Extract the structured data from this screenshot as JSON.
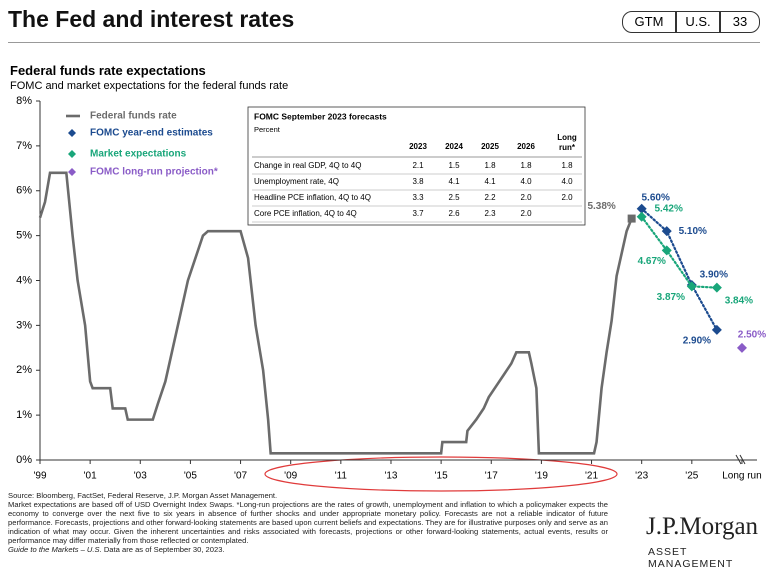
{
  "header": {
    "title": "The Fed and interest rates",
    "badges": [
      "GTM",
      "U.S.",
      "33"
    ]
  },
  "chart_data": {
    "type": "line",
    "title": "Federal funds rate expectations",
    "subtitle": "FOMC and market expectations for the federal funds rate",
    "xlim": [
      1999,
      2027.6
    ],
    "xticks": [
      {
        "value": 1999,
        "label": "'99"
      },
      {
        "value": 2001,
        "label": "'01"
      },
      {
        "value": 2003,
        "label": "'03"
      },
      {
        "value": 2005,
        "label": "'05"
      },
      {
        "value": 2007,
        "label": "'07"
      },
      {
        "value": 2009,
        "label": "'09"
      },
      {
        "value": 2011,
        "label": "'11"
      },
      {
        "value": 2013,
        "label": "'13"
      },
      {
        "value": 2015,
        "label": "'15"
      },
      {
        "value": 2017,
        "label": "'17"
      },
      {
        "value": 2019,
        "label": "'19"
      },
      {
        "value": 2021,
        "label": "'21"
      },
      {
        "value": 2023,
        "label": "'23"
      },
      {
        "value": 2025,
        "label": "'25"
      },
      {
        "value": 2027,
        "label": "Long run"
      }
    ],
    "ylim": [
      0,
      8
    ],
    "yticks": [
      {
        "value": 0,
        "label": "0%"
      },
      {
        "value": 1,
        "label": "1%"
      },
      {
        "value": 2,
        "label": "2%"
      },
      {
        "value": 3,
        "label": "3%"
      },
      {
        "value": 4,
        "label": "4%"
      },
      {
        "value": 5,
        "label": "5%"
      },
      {
        "value": 6,
        "label": "6%"
      },
      {
        "value": 7,
        "label": "7%"
      },
      {
        "value": 8,
        "label": "8%"
      }
    ],
    "grid": false,
    "series": [
      {
        "name": "Federal funds rate",
        "color": "#6b6b6b",
        "line_style": "solid",
        "marker": "end-square",
        "x": [
          1999.0,
          1999.2,
          1999.4,
          2000.05,
          2000.3,
          2000.5,
          2000.8,
          2001.0,
          2001.1,
          2001.8,
          2001.9,
          2002.4,
          2002.5,
          2003.5,
          2003.7,
          2004.0,
          2004.3,
          2004.6,
          2004.9,
          2005.2,
          2005.5,
          2005.7,
          2007.0,
          2007.3,
          2007.6,
          2007.9,
          2008.1,
          2008.2,
          2015.0,
          2015.05,
          2016.0,
          2016.05,
          2016.4,
          2016.7,
          2016.9,
          2017.2,
          2017.5,
          2017.8,
          2018.0,
          2018.5,
          2018.6,
          2018.8,
          2018.9,
          2021.1,
          2021.2,
          2021.4,
          2021.6,
          2021.8,
          2022.0,
          2022.2,
          2022.4,
          2022.6
        ],
        "values": [
          5.4,
          5.75,
          6.4,
          6.4,
          5.0,
          4.0,
          3.0,
          1.75,
          1.6,
          1.6,
          1.15,
          1.15,
          0.9,
          0.9,
          1.25,
          1.75,
          2.5,
          3.25,
          4.0,
          4.5,
          5.0,
          5.1,
          5.1,
          4.5,
          3.0,
          2.0,
          0.9,
          0.15,
          0.15,
          0.4,
          0.4,
          0.65,
          0.9,
          1.15,
          1.4,
          1.65,
          1.9,
          2.15,
          2.4,
          2.4,
          2.15,
          1.6,
          0.15,
          0.15,
          0.4,
          1.6,
          2.4,
          3.1,
          4.1,
          4.6,
          5.1,
          5.38
        ],
        "value_labels": [
          null,
          null,
          null,
          null,
          null,
          null,
          null,
          null,
          null,
          null,
          null,
          null,
          null,
          null,
          null,
          null,
          null,
          null,
          null,
          null,
          null,
          null,
          null,
          null,
          null,
          null,
          null,
          null,
          null,
          null,
          null,
          null,
          null,
          null,
          null,
          null,
          null,
          null,
          null,
          null,
          null,
          null,
          null,
          null,
          null,
          null,
          null,
          null,
          null,
          null,
          null,
          "5.38%"
        ]
      },
      {
        "name": "FOMC  year-end estimates",
        "color": "#1c4b8f",
        "line_style": "dotted",
        "marker": "diamond",
        "x": [
          2023,
          2024,
          2025,
          2026
        ],
        "values": [
          5.6,
          5.1,
          3.9,
          2.9
        ],
        "value_labels": [
          "5.60%",
          "5.10%",
          "3.90%",
          "2.90%"
        ]
      },
      {
        "name": "Market expectations",
        "color": "#19a67a",
        "line_style": "dotted",
        "marker": "diamond",
        "x": [
          2023,
          2024,
          2025,
          2026
        ],
        "values": [
          5.42,
          4.67,
          3.87,
          3.84
        ],
        "value_labels": [
          "5.42%",
          "4.67%",
          "3.87%",
          "3.84%"
        ]
      },
      {
        "name": "FOMC  long-run projection*",
        "color": "#8a5cc7",
        "line_style": "none",
        "marker": "diamond",
        "x": [
          2027
        ],
        "values": [
          2.5
        ],
        "value_labels": [
          "2.50%"
        ]
      }
    ]
  },
  "forecast_table": {
    "title": "FOMC September 2023 forecasts",
    "subtitle": "Percent",
    "columns": [
      "2023",
      "2024",
      "2025",
      "2026",
      "Long run*"
    ],
    "rows": [
      {
        "label": "Change in real GDP, 4Q to 4Q",
        "cells": [
          "2.1",
          "1.5",
          "1.8",
          "1.8",
          "1.8"
        ]
      },
      {
        "label": "Unemployment rate, 4Q",
        "cells": [
          "3.8",
          "4.1",
          "4.1",
          "4.0",
          "4.0"
        ]
      },
      {
        "label": "Headline PCE inflation, 4Q to 4Q",
        "cells": [
          "3.3",
          "2.5",
          "2.2",
          "2.0",
          "2.0"
        ]
      },
      {
        "label": "Core PCE inflation, 4Q to 4Q",
        "cells": [
          "3.7",
          "2.6",
          "2.3",
          "2.0"
        ]
      }
    ]
  },
  "footnotes": {
    "source": "Source: Bloomberg, FactSet, Federal Reserve, J.P. Morgan Asset Management.",
    "notes": "Market expectations are based off of USD Overnight Index Swaps. *Long-run projections are the rates of growth, unemployment and inflation to which a policymaker expects the economy to converge over the next five to six years in absence of further shocks and under appropriate monetary policy. Forecasts are not a reliable indicator of future performance. Forecasts, projections and other forward-looking statements are based upon current beliefs and expectations. They are for illustrative purposes only and serve as an indication of what may occur. Given the inherent uncertainties and risks associated with forecasts, projections or other forward-looking statements, actual events, results or performance may differ materially from those reflected or contemplated.",
    "guide": "Guide to the Markets – U.S.",
    "asof": "Data are as of September 30, 2023."
  },
  "logo": {
    "name": "J.P.Morgan",
    "tagline": "ASSET MANAGEMENT"
  }
}
